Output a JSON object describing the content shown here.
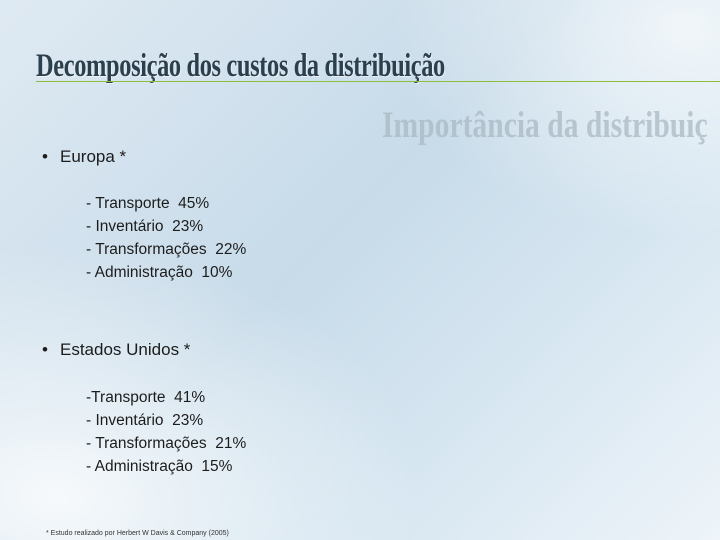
{
  "slide": {
    "title": "Decomposição dos custos da distribuição",
    "watermark": "Importância da distribuiç",
    "sections": [
      {
        "bullet": "•",
        "header": "Europa *",
        "items": [
          "- Transporte  45%",
          "- Inventário  23%",
          "- Transformações  22%",
          "- Administração  10%"
        ]
      },
      {
        "bullet": "•",
        "header": "Estados Unidos *",
        "items": [
          "-Transporte  41%",
          "- Inventário  23%",
          "- Transformações  21%",
          "- Administração  15%"
        ]
      }
    ],
    "footnote": "* Estudo realizado por Herbert W Davis & Company (2005)"
  },
  "colors": {
    "title": "#2c3f4c",
    "title_rule": "#8bbf3a",
    "watermark": "#aab9c4",
    "text": "#1c1c1c"
  }
}
